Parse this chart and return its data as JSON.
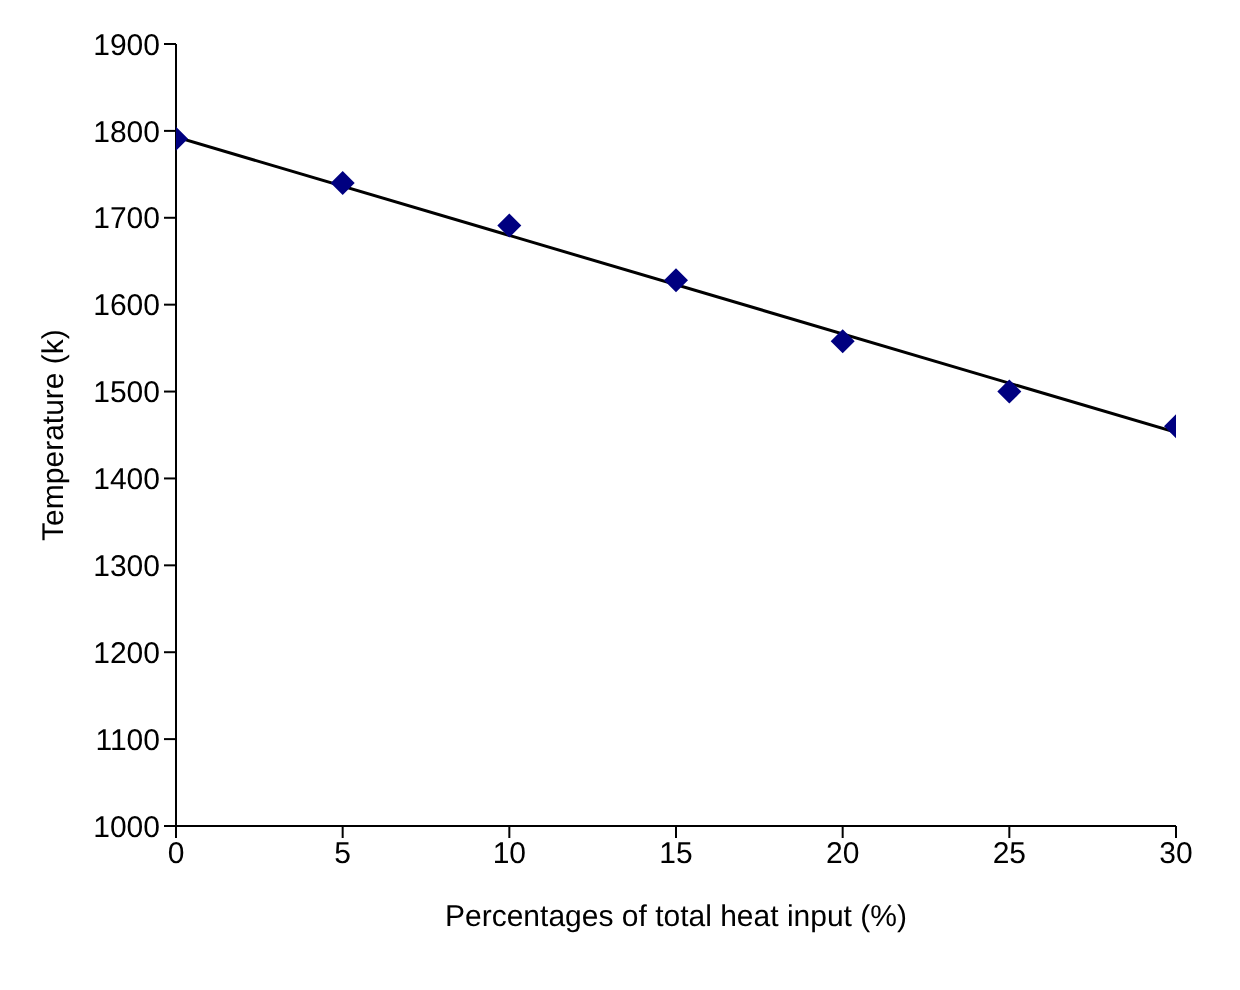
{
  "chart_data": {
    "type": "scatter",
    "xlabel": "Percentages of total heat input (%)",
    "ylabel": "Temperature (k)",
    "x": [
      0,
      5,
      10,
      15,
      20,
      25,
      30
    ],
    "series": [
      {
        "color": "#000080",
        "marker": "diamond",
        "values": [
          1791,
          1740,
          1691,
          1628,
          1558,
          1500,
          1460
        ]
      },
      {
        "type": "line",
        "color": "#000000",
        "marker": "none",
        "line_style": "solid",
        "x": [
          0,
          30
        ],
        "values": [
          1793,
          1453
        ]
      }
    ],
    "xlim": [
      0,
      30
    ],
    "xticks": [
      0,
      5,
      10,
      15,
      20,
      25,
      30
    ],
    "ylim": [
      1000,
      1900
    ],
    "yticks": [
      1000,
      1100,
      1200,
      1300,
      1400,
      1500,
      1600,
      1700,
      1800,
      1900
    ],
    "grid": false,
    "legend": false
  }
}
